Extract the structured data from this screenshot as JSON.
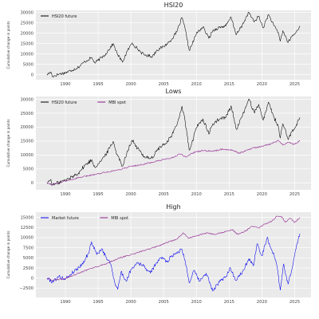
{
  "chart_data": [
    {
      "type": "line",
      "title": "HSI20",
      "ylabel": "Cumulative change in points",
      "xlim": [
        1985.5,
        2027.5
      ],
      "ylim": [
        -2500,
        31000
      ],
      "x_ticks": [
        1990,
        1995,
        2000,
        2005,
        2010,
        2015,
        2020,
        2025
      ],
      "y_ticks": [
        0,
        5000,
        10000,
        15000,
        20000,
        25000,
        30000
      ],
      "grid": true,
      "legend": "top-left",
      "series": [
        {
          "name": "HSI20 future",
          "color": "#000000",
          "points": [
            [
              1987.2,
              0
            ],
            [
              1987.8,
              1200
            ],
            [
              1988.0,
              -900
            ],
            [
              1989.0,
              200
            ],
            [
              1990.0,
              900
            ],
            [
              1991.0,
              2100
            ],
            [
              1992.0,
              3600
            ],
            [
              1993.0,
              6300
            ],
            [
              1994.0,
              8200
            ],
            [
              1994.5,
              5600
            ],
            [
              1995.0,
              6900
            ],
            [
              1996.0,
              9400
            ],
            [
              1997.3,
              14900
            ],
            [
              1997.9,
              10200
            ],
            [
              1998.7,
              6000
            ],
            [
              1999.5,
              11600
            ],
            [
              2000.2,
              15300
            ],
            [
              2001.0,
              12400
            ],
            [
              2002.0,
              9500
            ],
            [
              2003.3,
              8800
            ],
            [
              2004.0,
              11900
            ],
            [
              2005.0,
              13500
            ],
            [
              2006.0,
              16200
            ],
            [
              2007.0,
              20500
            ],
            [
              2007.8,
              27500
            ],
            [
              2008.3,
              21800
            ],
            [
              2008.9,
              11700
            ],
            [
              2009.3,
              14200
            ],
            [
              2010.0,
              19800
            ],
            [
              2011.0,
              23000
            ],
            [
              2011.9,
              17500
            ],
            [
              2012.5,
              21200
            ],
            [
              2013.5,
              22800
            ],
            [
              2014.5,
              23500
            ],
            [
              2015.3,
              27700
            ],
            [
              2016.1,
              19200
            ],
            [
              2017.0,
              23800
            ],
            [
              2018.0,
              30100
            ],
            [
              2018.8,
              25400
            ],
            [
              2019.5,
              28200
            ],
            [
              2020.2,
              22500
            ],
            [
              2021.0,
              29000
            ],
            [
              2021.8,
              23800
            ],
            [
              2022.5,
              20300
            ],
            [
              2022.8,
              16100
            ],
            [
              2023.2,
              21200
            ],
            [
              2024.0,
              15500
            ],
            [
              2024.6,
              18500
            ],
            [
              2025.2,
              20300
            ],
            [
              2025.8,
              23500
            ]
          ]
        }
      ]
    },
    {
      "type": "line",
      "title": "Lows",
      "ylabel": "Cumulative change in points",
      "xlim": [
        1985.5,
        2027.5
      ],
      "ylim": [
        -2500,
        31000
      ],
      "x_ticks": [
        1990,
        1995,
        2000,
        2005,
        2010,
        2015,
        2020,
        2025
      ],
      "y_ticks": [
        0,
        5000,
        10000,
        15000,
        20000,
        25000,
        30000
      ],
      "grid": true,
      "legend": "top-left",
      "series": [
        {
          "name": "HSI20 future",
          "color": "#000000",
          "points": [
            [
              1987.2,
              0
            ],
            [
              1987.8,
              1200
            ],
            [
              1988.0,
              -900
            ],
            [
              1989.0,
              200
            ],
            [
              1990.0,
              900
            ],
            [
              1991.0,
              2100
            ],
            [
              1992.0,
              3600
            ],
            [
              1993.0,
              6300
            ],
            [
              1994.0,
              8200
            ],
            [
              1994.5,
              5600
            ],
            [
              1995.0,
              6900
            ],
            [
              1996.0,
              9400
            ],
            [
              1997.3,
              14900
            ],
            [
              1997.9,
              10200
            ],
            [
              1998.7,
              6000
            ],
            [
              1999.5,
              11600
            ],
            [
              2000.2,
              15300
            ],
            [
              2001.0,
              12400
            ],
            [
              2002.0,
              9500
            ],
            [
              2003.3,
              8800
            ],
            [
              2004.0,
              11900
            ],
            [
              2005.0,
              13500
            ],
            [
              2006.0,
              16200
            ],
            [
              2007.0,
              20500
            ],
            [
              2007.8,
              27500
            ],
            [
              2008.3,
              21800
            ],
            [
              2008.9,
              11700
            ],
            [
              2009.3,
              14200
            ],
            [
              2010.0,
              19800
            ],
            [
              2011.0,
              23000
            ],
            [
              2011.9,
              17500
            ],
            [
              2012.5,
              21200
            ],
            [
              2013.5,
              22800
            ],
            [
              2014.5,
              23500
            ],
            [
              2015.3,
              27700
            ],
            [
              2016.1,
              19200
            ],
            [
              2017.0,
              23800
            ],
            [
              2018.0,
              30100
            ],
            [
              2018.8,
              25400
            ],
            [
              2019.5,
              28200
            ],
            [
              2020.2,
              22500
            ],
            [
              2021.0,
              29000
            ],
            [
              2021.8,
              23800
            ],
            [
              2022.5,
              20300
            ],
            [
              2022.8,
              16100
            ],
            [
              2023.2,
              21200
            ],
            [
              2024.0,
              15500
            ],
            [
              2024.6,
              18500
            ],
            [
              2025.2,
              20300
            ],
            [
              2025.8,
              23500
            ]
          ]
        },
        {
          "name": "MBI spot",
          "color": "#8b1a8b",
          "points": [
            [
              1987.2,
              0
            ],
            [
              1988.0,
              -600
            ],
            [
              1990.0,
              600
            ],
            [
              1992.0,
              1800
            ],
            [
              1994.0,
              2800
            ],
            [
              1996.0,
              3800
            ],
            [
              1998.0,
              4600
            ],
            [
              2000.0,
              5900
            ],
            [
              2002.0,
              6700
            ],
            [
              2004.0,
              7800
            ],
            [
              2006.0,
              8800
            ],
            [
              2007.5,
              10300
            ],
            [
              2008.5,
              9300
            ],
            [
              2009.5,
              10800
            ],
            [
              2011.0,
              11600
            ],
            [
              2012.5,
              11300
            ],
            [
              2014.0,
              12100
            ],
            [
              2015.5,
              11800
            ],
            [
              2016.5,
              10600
            ],
            [
              2017.5,
              11500
            ],
            [
              2018.5,
              12400
            ],
            [
              2019.5,
              12900
            ],
            [
              2020.3,
              13400
            ],
            [
              2021.5,
              14100
            ],
            [
              2022.5,
              15200
            ],
            [
              2023.3,
              13600
            ],
            [
              2024.0,
              14600
            ],
            [
              2024.8,
              13800
            ],
            [
              2025.8,
              15000
            ]
          ]
        }
      ]
    },
    {
      "type": "line",
      "title": "High",
      "ylabel": "Cumulative change in points",
      "xlim": [
        1985.5,
        2027.5
      ],
      "ylim": [
        -4800,
        16300
      ],
      "x_ticks": [
        1990,
        1995,
        2000,
        2005,
        2010,
        2015,
        2020,
        2025
      ],
      "y_ticks": [
        -2500,
        0,
        2500,
        5000,
        7500,
        10000,
        12500,
        15000
      ],
      "grid": true,
      "legend": "top-left",
      "series": [
        {
          "name": "Market future",
          "color": "#0000ee",
          "points": [
            [
              1987.2,
              0
            ],
            [
              1988.0,
              -900
            ],
            [
              1989.0,
              300
            ],
            [
              1990.0,
              -200
            ],
            [
              1991.0,
              1200
            ],
            [
              1992.5,
              3300
            ],
            [
              1993.5,
              6000
            ],
            [
              1994.0,
              9000
            ],
            [
              1994.8,
              5800
            ],
            [
              1995.5,
              7200
            ],
            [
              1996.2,
              5200
            ],
            [
              1997.0,
              3200
            ],
            [
              1997.5,
              -900
            ],
            [
              1998.0,
              -2800
            ],
            [
              1998.5,
              1500
            ],
            [
              1999.3,
              -800
            ],
            [
              2000.0,
              2100
            ],
            [
              2001.0,
              3900
            ],
            [
              2002.0,
              2900
            ],
            [
              2003.0,
              1200
            ],
            [
              2003.8,
              3600
            ],
            [
              2004.8,
              5200
            ],
            [
              2005.5,
              4000
            ],
            [
              2006.2,
              5400
            ],
            [
              2007.0,
              6300
            ],
            [
              2007.8,
              7100
            ],
            [
              2008.3,
              4300
            ],
            [
              2008.9,
              -1200
            ],
            [
              2009.6,
              1800
            ],
            [
              2010.5,
              -800
            ],
            [
              2011.5,
              1200
            ],
            [
              2012.5,
              -3200
            ],
            [
              2013.5,
              -1000
            ],
            [
              2014.5,
              300
            ],
            [
              2015.2,
              2500
            ],
            [
              2016.0,
              -500
            ],
            [
              2017.0,
              1500
            ],
            [
              2018.0,
              4800
            ],
            [
              2018.7,
              3000
            ],
            [
              2019.3,
              8500
            ],
            [
              2020.0,
              5500
            ],
            [
              2020.8,
              10000
            ],
            [
              2021.5,
              7000
            ],
            [
              2022.2,
              4000
            ],
            [
              2022.8,
              -3000
            ],
            [
              2023.3,
              3500
            ],
            [
              2024.0,
              -1500
            ],
            [
              2024.7,
              3000
            ],
            [
              2025.3,
              8200
            ],
            [
              2025.8,
              11000
            ]
          ]
        },
        {
          "name": "MBI spot",
          "color": "#8b1a8b",
          "points": [
            [
              1987.2,
              0
            ],
            [
              1988.0,
              -600
            ],
            [
              1990.0,
              -100
            ],
            [
              1992.0,
              1200
            ],
            [
              1994.0,
              2400
            ],
            [
              1996.0,
              3400
            ],
            [
              1998.0,
              4800
            ],
            [
              2000.0,
              5800
            ],
            [
              2002.0,
              6800
            ],
            [
              2004.0,
              7800
            ],
            [
              2005.5,
              8800
            ],
            [
              2007.0,
              9600
            ],
            [
              2008.0,
              11200
            ],
            [
              2008.8,
              9800
            ],
            [
              2010.0,
              10500
            ],
            [
              2011.5,
              11100
            ],
            [
              2013.0,
              10800
            ],
            [
              2014.5,
              11500
            ],
            [
              2015.5,
              12000
            ],
            [
              2016.3,
              10800
            ],
            [
              2017.5,
              11600
            ],
            [
              2018.5,
              12800
            ],
            [
              2019.5,
              12400
            ],
            [
              2020.5,
              13400
            ],
            [
              2021.5,
              14000
            ],
            [
              2022.3,
              15300
            ],
            [
              2023.0,
              15200
            ],
            [
              2023.6,
              13800
            ],
            [
              2024.3,
              14800
            ],
            [
              2025.0,
              13700
            ],
            [
              2025.8,
              15000
            ]
          ]
        }
      ]
    }
  ]
}
